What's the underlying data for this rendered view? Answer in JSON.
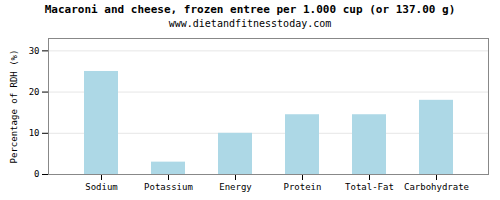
{
  "chart_data": {
    "type": "bar",
    "title": "Macaroni and cheese, frozen entree per 1.000 cup (or 137.00 g)",
    "subtitle": "www.dietandfitnesstoday.com",
    "categories": [
      "Sodium",
      "Potassium",
      "Energy",
      "Protein",
      "Total-Fat",
      "Carbohydrate"
    ],
    "values": [
      25,
      3,
      10,
      14.5,
      14.5,
      18
    ],
    "color": "#add8e6",
    "ylabel": "Percentage of RDH (%)",
    "ylim": [
      0,
      33
    ],
    "yticks": [
      0,
      10,
      20,
      30
    ],
    "grid": true
  }
}
